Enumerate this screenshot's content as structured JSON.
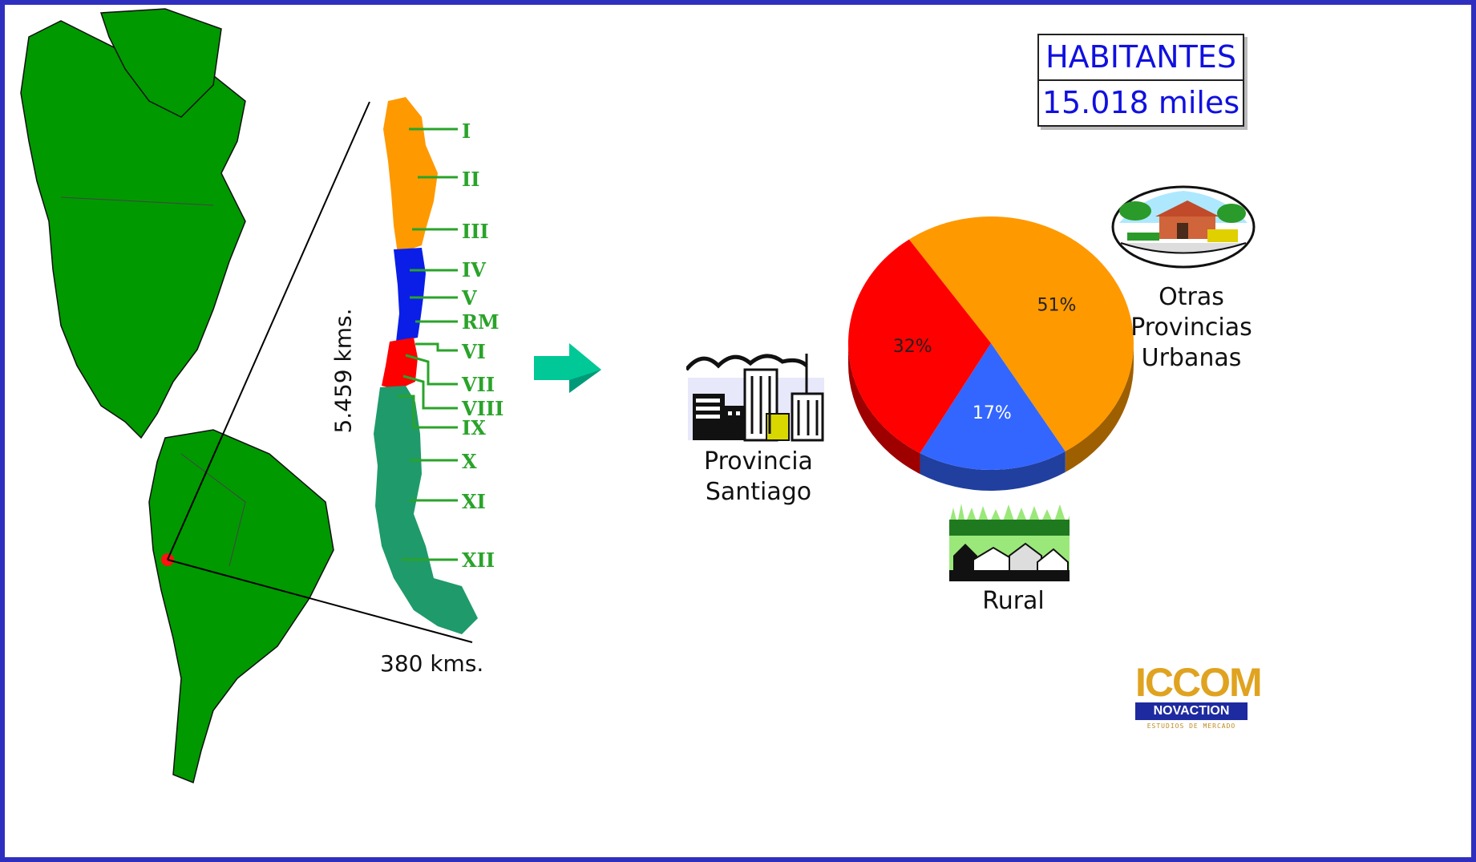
{
  "habitantes": {
    "title": "HABITANTES",
    "value": "15.018 miles"
  },
  "map": {
    "height_label": "5.459 kms.",
    "width_label": "380 kms.",
    "regions": [
      "I",
      "II",
      "III",
      "IV",
      "V",
      "RM",
      "VI",
      "VII",
      "VIII",
      "IX",
      "X",
      "XI",
      "XII"
    ]
  },
  "labels": {
    "santiago": [
      "Provincia",
      "Santiago"
    ],
    "otras": [
      "Otras",
      "Provincias",
      "Urbanas"
    ],
    "rural": "Rural"
  },
  "logo": {
    "top": "ICCOM",
    "mid": "NOVACTION",
    "bottom": "ESTUDIOS DE MERCADO"
  },
  "colors": {
    "frame": "#2f2fbf",
    "green": "#009900",
    "orange": "#ff9900",
    "red": "#ff0000",
    "blue": "#3366ff",
    "arrow": "#00c896"
  },
  "chart_data": {
    "type": "pie",
    "slices": [
      {
        "category": "Otras Provincias Urbanas",
        "value": 51,
        "label": "51%",
        "color": "#ff9900"
      },
      {
        "category": "Rural",
        "value": 17,
        "label": "17%",
        "color": "#3366ff"
      },
      {
        "category": "Provincia Santiago",
        "value": 32,
        "label": "32%",
        "color": "#ff0000"
      }
    ]
  }
}
